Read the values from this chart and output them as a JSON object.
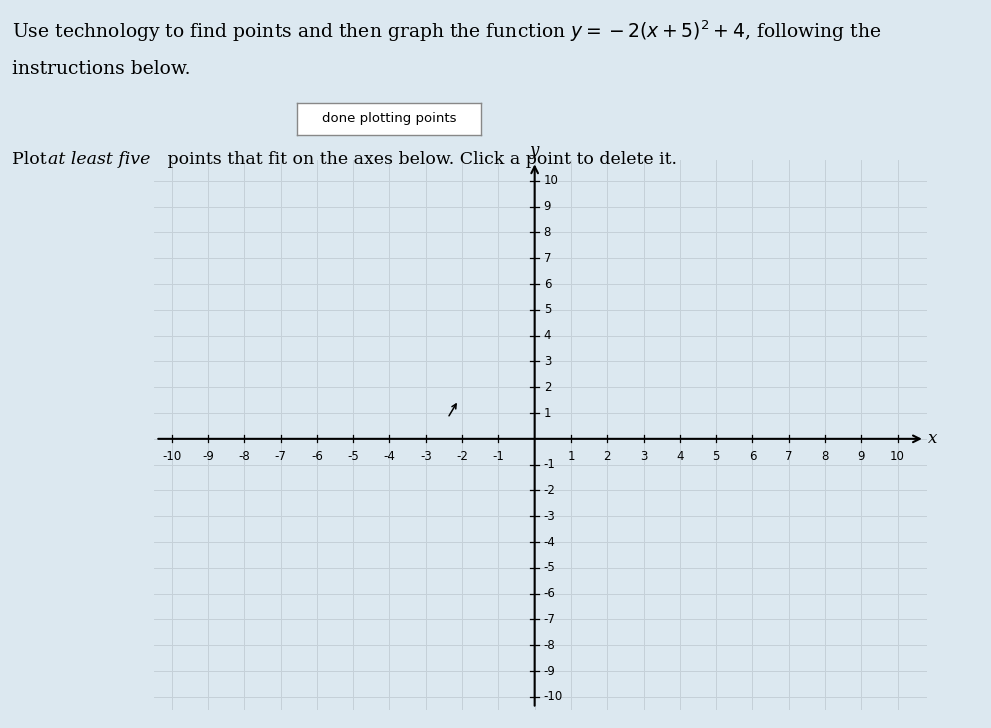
{
  "button_text": "done plotting points",
  "xmin": -10,
  "xmax": 10,
  "ymin": -10,
  "ymax": 10,
  "xlabel": "x",
  "ylabel": "y",
  "grid_color": "#c5d0d8",
  "plot_bg": "#dce8f0",
  "fig_bg": "#dce8f0",
  "axis_lw": 1.5,
  "title_line1": "Use technology to find points and then graph the function $y = -2(x+5)^2 + 4$, following the",
  "title_line2": "instructions below.",
  "subtitle_pre": "Plot ",
  "subtitle_italic": "at least five",
  "subtitle_post": " points that fit on the axes below. Click a point to delete it.",
  "cursor_x": -2.1,
  "cursor_y": 1.0
}
